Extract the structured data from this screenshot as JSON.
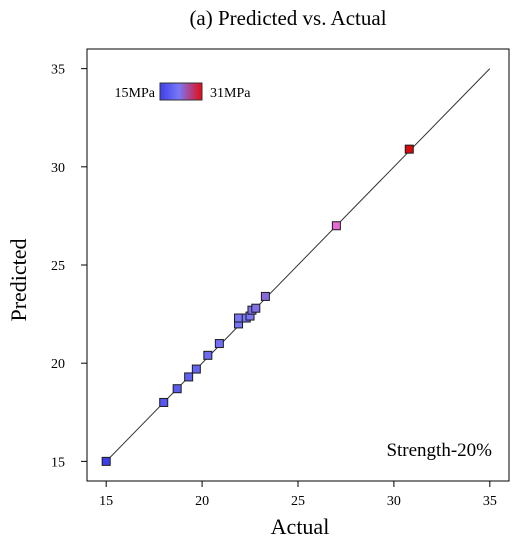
{
  "chart_data": {
    "type": "scatter",
    "title": "(a) Predicted vs. Actual",
    "xlabel": "Actual",
    "ylabel": "Predicted",
    "xlim": [
      14,
      36
    ],
    "ylim": [
      14,
      36
    ],
    "xticks": [
      15,
      20,
      25,
      30,
      35
    ],
    "yticks": [
      15,
      20,
      25,
      30,
      35
    ],
    "grid": false,
    "reference_line": {
      "from": [
        15,
        15
      ],
      "to": [
        35,
        35
      ]
    },
    "annotation": "Strength-20%",
    "color_scale": {
      "min_label": "15MPa",
      "max_label": "31MPa",
      "min_value": 15,
      "max_value": 31,
      "colors": [
        "#3f3fe8",
        "#7878f8",
        "#e80a10"
      ],
      "placement": "top-left"
    },
    "points": [
      {
        "x": 15.0,
        "y": 15.0
      },
      {
        "x": 18.0,
        "y": 18.0
      },
      {
        "x": 18.7,
        "y": 18.7
      },
      {
        "x": 19.3,
        "y": 19.3
      },
      {
        "x": 19.7,
        "y": 19.7
      },
      {
        "x": 20.3,
        "y": 20.4
      },
      {
        "x": 20.9,
        "y": 21.0
      },
      {
        "x": 21.9,
        "y": 22.0
      },
      {
        "x": 21.9,
        "y": 22.3
      },
      {
        "x": 22.3,
        "y": 22.3
      },
      {
        "x": 22.5,
        "y": 22.4
      },
      {
        "x": 22.6,
        "y": 22.7
      },
      {
        "x": 22.8,
        "y": 22.8
      },
      {
        "x": 23.3,
        "y": 23.4
      },
      {
        "x": 27.0,
        "y": 27.0,
        "color": "#e66ad6"
      },
      {
        "x": 30.8,
        "y": 30.9,
        "color": "#d40a0e"
      }
    ]
  }
}
